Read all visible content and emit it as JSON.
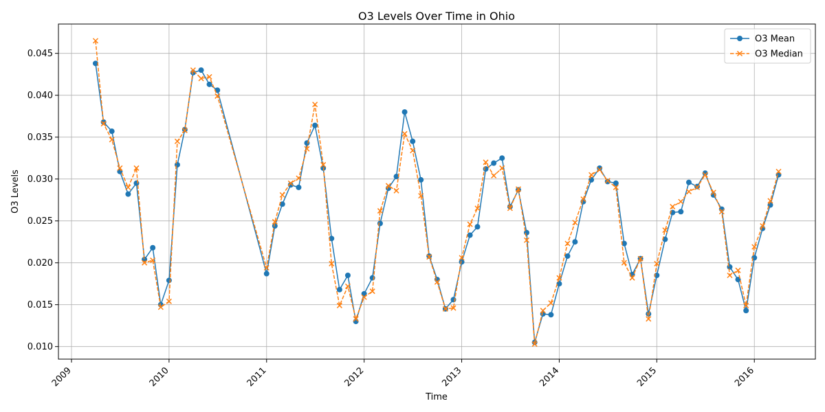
{
  "chart_data": {
    "type": "line",
    "title": "O3 Levels Over Time in Ohio",
    "xlabel": "Time",
    "ylabel": "O3 Levels",
    "x_ticks": [
      "2009",
      "2010",
      "2011",
      "2012",
      "2013",
      "2014",
      "2015",
      "2016"
    ],
    "y_ticks": [
      "0.010",
      "0.015",
      "0.020",
      "0.025",
      "0.030",
      "0.035",
      "0.040",
      "0.045"
    ],
    "xlim": [
      "2008-11-13",
      "2016-08-17"
    ],
    "ylim": [
      0.0085,
      0.0485
    ],
    "grid": true,
    "legend_position": "top-right",
    "x": [
      "2009-04",
      "2009-05",
      "2009-06",
      "2009-07",
      "2009-08",
      "2009-09",
      "2009-10",
      "2009-11",
      "2009-12",
      "2010-01",
      "2010-02",
      "2010-03",
      "2010-04",
      "2010-05",
      "2010-06",
      "2010-07",
      "2011-01",
      "2011-02",
      "2011-03",
      "2011-04",
      "2011-05",
      "2011-06",
      "2011-07",
      "2011-08",
      "2011-09",
      "2011-10",
      "2011-11",
      "2011-12",
      "2012-01",
      "2012-02",
      "2012-03",
      "2012-04",
      "2012-05",
      "2012-06",
      "2012-07",
      "2012-08",
      "2012-09",
      "2012-10",
      "2012-11",
      "2012-12",
      "2013-01",
      "2013-02",
      "2013-03",
      "2013-04",
      "2013-05",
      "2013-06",
      "2013-07",
      "2013-08",
      "2013-09",
      "2013-10",
      "2013-11",
      "2013-12",
      "2014-01",
      "2014-02",
      "2014-03",
      "2014-04",
      "2014-05",
      "2014-06",
      "2014-07",
      "2014-08",
      "2014-09",
      "2014-10",
      "2014-11",
      "2014-12",
      "2015-01",
      "2015-02",
      "2015-03",
      "2015-04",
      "2015-05",
      "2015-06",
      "2015-07",
      "2015-08",
      "2015-09",
      "2015-10",
      "2015-11",
      "2015-12",
      "2016-01",
      "2016-02",
      "2016-03",
      "2016-04"
    ],
    "series": [
      {
        "name": "O3 Mean",
        "color": "#1f77b4",
        "style": "solid",
        "marker": "circle",
        "values": [
          0.0438,
          0.0368,
          0.0357,
          0.0309,
          0.0282,
          0.0295,
          0.0204,
          0.0218,
          0.015,
          0.0179,
          0.0317,
          0.0359,
          0.0427,
          0.043,
          0.0413,
          0.0406,
          0.0187,
          0.0244,
          0.027,
          0.0293,
          0.029,
          0.0343,
          0.0364,
          0.0313,
          0.0229,
          0.0168,
          0.0185,
          0.013,
          0.0163,
          0.0182,
          0.0247,
          0.0289,
          0.0303,
          0.038,
          0.0345,
          0.0299,
          0.0208,
          0.018,
          0.0145,
          0.0156,
          0.0201,
          0.0233,
          0.0243,
          0.0312,
          0.0319,
          0.0325,
          0.0267,
          0.0287,
          0.0236,
          0.0105,
          0.0139,
          0.0138,
          0.0175,
          0.0208,
          0.0225,
          0.0273,
          0.0299,
          0.0313,
          0.0297,
          0.0295,
          0.0223,
          0.0186,
          0.0205,
          0.0139,
          0.0185,
          0.0228,
          0.026,
          0.0261,
          0.0296,
          0.0291,
          0.0307,
          0.0281,
          0.0264,
          0.0195,
          0.018,
          0.0143,
          0.0206,
          0.0241,
          0.0269,
          0.0305
        ]
      },
      {
        "name": "O3 Median",
        "color": "#ff7f0e",
        "style": "dashed",
        "marker": "x",
        "values": [
          0.0465,
          0.0366,
          0.0347,
          0.0313,
          0.029,
          0.0313,
          0.02,
          0.0203,
          0.0147,
          0.0154,
          0.0345,
          0.0358,
          0.043,
          0.042,
          0.0422,
          0.0399,
          0.0194,
          0.0249,
          0.0281,
          0.0295,
          0.0301,
          0.0336,
          0.0389,
          0.0317,
          0.0199,
          0.0149,
          0.0172,
          0.0133,
          0.0159,
          0.0166,
          0.0262,
          0.0292,
          0.0286,
          0.0354,
          0.0334,
          0.028,
          0.0207,
          0.0177,
          0.0145,
          0.0146,
          0.0206,
          0.0246,
          0.0265,
          0.032,
          0.0304,
          0.0313,
          0.0265,
          0.0288,
          0.0227,
          0.0103,
          0.0143,
          0.0152,
          0.0182,
          0.0223,
          0.0248,
          0.0276,
          0.0305,
          0.0311,
          0.0298,
          0.029,
          0.02,
          0.0182,
          0.0205,
          0.0133,
          0.0199,
          0.0239,
          0.0267,
          0.0273,
          0.0285,
          0.029,
          0.0305,
          0.0284,
          0.0261,
          0.0185,
          0.0191,
          0.0149,
          0.0219,
          0.0244,
          0.0274,
          0.0309
        ]
      }
    ]
  }
}
